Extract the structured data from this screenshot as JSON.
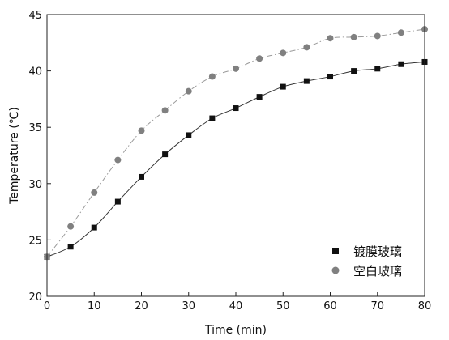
{
  "chart_data": {
    "type": "line",
    "xlabel": "Time (min)",
    "ylabel": "Temperature (℃)",
    "xlim": [
      0,
      80
    ],
    "ylim": [
      20,
      45
    ],
    "xticks": [
      0,
      10,
      20,
      30,
      40,
      50,
      60,
      70,
      80
    ],
    "yticks": [
      20,
      25,
      30,
      35,
      40,
      45
    ],
    "grid": false,
    "legend_position": "bottom-right",
    "x": [
      0,
      5,
      10,
      15,
      20,
      25,
      30,
      35,
      40,
      45,
      50,
      55,
      60,
      65,
      70,
      75,
      80
    ],
    "series": [
      {
        "name": "镀膜玻璃",
        "marker": "square",
        "line_style": "solid",
        "color": "#111111",
        "values": [
          23.5,
          24.4,
          26.1,
          28.4,
          30.6,
          32.6,
          34.3,
          35.8,
          36.7,
          37.7,
          38.6,
          39.1,
          39.5,
          40.0,
          40.2,
          40.6,
          40.8
        ]
      },
      {
        "name": "空白玻璃",
        "marker": "circle",
        "line_style": "dash-dot",
        "color": "#808080",
        "values": [
          23.5,
          26.2,
          29.2,
          32.1,
          34.7,
          36.5,
          38.2,
          39.5,
          40.2,
          41.1,
          41.6,
          42.1,
          42.9,
          43.0,
          43.1,
          43.4,
          43.7
        ]
      }
    ]
  }
}
